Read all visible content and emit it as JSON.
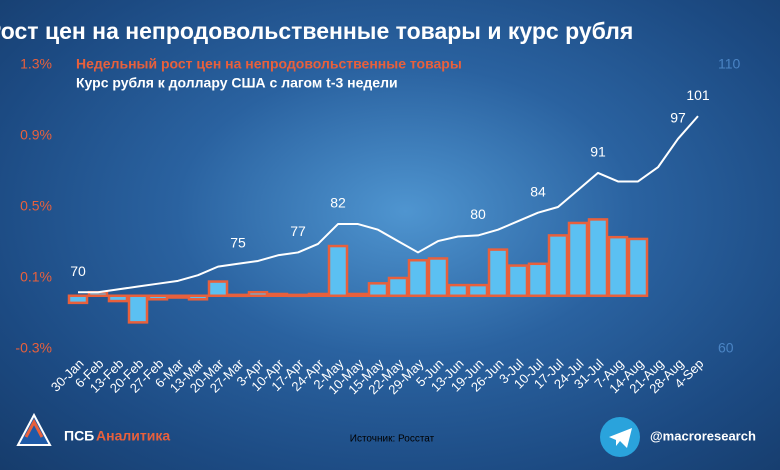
{
  "chart_data": {
    "type": "bar",
    "title": "Рост цен на непродовольственные товары и курс рубля",
    "categories": [
      "30-Jan",
      "6-Feb",
      "13-Feb",
      "20-Feb",
      "27-Feb",
      "6-Mar",
      "13-Mar",
      "20-Mar",
      "27-Mar",
      "3-Apr",
      "10-Apr",
      "17-Apr",
      "24-Apr",
      "2-May",
      "10-May",
      "15-May",
      "22-May",
      "29-May",
      "5-Jun",
      "13-Jun",
      "19-Jun",
      "26-Jun",
      "3-Jul",
      "10-Jul",
      "17-Jul",
      "24-Jul",
      "31-Jul",
      "7-Aug",
      "14-Aug",
      "21-Aug",
      "28-Aug",
      "4-Sep"
    ],
    "series": [
      {
        "name": "Недельный рост цен на непродовольственные товары",
        "type": "bar",
        "color": "#5bc0f2",
        "edge": "#e8603c",
        "values": [
          -0.04,
          0.02,
          -0.03,
          -0.15,
          -0.02,
          -0.01,
          -0.02,
          0.08,
          0.005,
          0.02,
          0.01,
          0.005,
          0.01,
          0.28,
          0.01,
          0.07,
          0.1,
          0.2,
          0.21,
          0.06,
          0.06,
          0.26,
          0.17,
          0.18,
          0.34,
          0.41,
          0.43,
          0.33,
          0.32,
          null,
          null,
          null
        ]
      },
      {
        "name": "Курс рубля к доллару США с лагом t-3 недели",
        "type": "line",
        "axis": "y2",
        "color": "#ffffff",
        "values": [
          70,
          70,
          70.5,
          71,
          71.5,
          72,
          73,
          74.5,
          75,
          75.5,
          76.5,
          77,
          78.5,
          82,
          82,
          81,
          79,
          77,
          79,
          79.8,
          80,
          81,
          82.5,
          84,
          85,
          88,
          91,
          89.5,
          89.5,
          92,
          97,
          101
        ],
        "value_labels": [
          "70",
          null,
          null,
          null,
          null,
          null,
          null,
          null,
          "75",
          null,
          null,
          "77",
          null,
          "82",
          null,
          null,
          null,
          null,
          null,
          null,
          "80",
          null,
          null,
          "84",
          null,
          null,
          "91",
          null,
          null,
          null,
          "97",
          "101"
        ]
      }
    ],
    "ylim": [
      -0.3,
      1.3
    ],
    "yticks": [
      {
        "value": -0.3,
        "label": "-0.3%"
      },
      {
        "value": 0.1,
        "label": "0.1%"
      },
      {
        "value": 0.5,
        "label": "0.5%"
      },
      {
        "value": 0.9,
        "label": "0.9%"
      },
      {
        "value": 1.3,
        "label": "1.3%"
      }
    ],
    "y2lim": [
      60,
      110
    ],
    "y2ticks": [
      60,
      110
    ],
    "grid": false
  },
  "footer": {
    "brand": "ПСБ",
    "brand_suffix": "Аналитика",
    "source": "Источник: Росстат",
    "handle": "@macroresearch"
  }
}
